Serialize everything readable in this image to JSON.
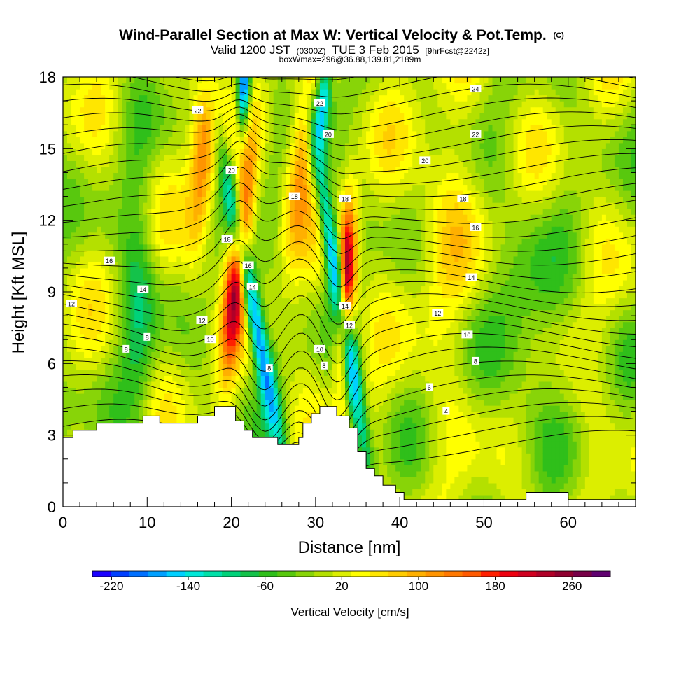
{
  "chart_data": {
    "type": "heatmap",
    "title": "Wind-Parallel Section at Max W: Vertical Velocity & Pot.Temp.",
    "title_suffix": "(C)",
    "subtitle_parts": [
      "Valid 1200 JST",
      "(0300Z)",
      "TUE 3 Feb 2015",
      "[9hrFcst@2242z]"
    ],
    "subtitle2": "boxWmax=296@36.88,139.81,2189m",
    "xlabel": "Distance [nm]",
    "ylabel": "Height [Kft MSL]",
    "xlim": [
      0,
      68
    ],
    "ylim": [
      0,
      18
    ],
    "x_ticks": [
      "0",
      "10",
      "20",
      "30",
      "40",
      "50",
      "60"
    ],
    "y_ticks": [
      "0",
      "3",
      "6",
      "9",
      "12",
      "15",
      "18"
    ],
    "colorbar": {
      "label": "Vertical Velocity [cm/s]",
      "tick_labels": [
        "-220",
        "-140",
        "-60",
        "20",
        "100",
        "180",
        "260"
      ],
      "range": [
        -240,
        300
      ],
      "colors": [
        "#1a00ff",
        "#0040ff",
        "#0070ff",
        "#00a0ff",
        "#00d0ff",
        "#00e8d8",
        "#00e0a8",
        "#00d27a",
        "#14c24a",
        "#2fbf1a",
        "#58c80e",
        "#88d408",
        "#b4e000",
        "#dcee00",
        "#ffff00",
        "#ffe600",
        "#ffcc00",
        "#ffb000",
        "#ff9400",
        "#ff7800",
        "#ff5a00",
        "#ff2000",
        "#ee0010",
        "#d00020",
        "#b00028",
        "#900030",
        "#780048",
        "#600070"
      ]
    },
    "contour_labels": [
      {
        "x": 1,
        "y": 8.5,
        "v": "12"
      },
      {
        "x": 7.5,
        "y": 6.6,
        "v": "8"
      },
      {
        "x": 10,
        "y": 7.1,
        "v": "8"
      },
      {
        "x": 9.5,
        "y": 9.1,
        "v": "14"
      },
      {
        "x": 5.5,
        "y": 10.3,
        "v": "16"
      },
      {
        "x": 17.5,
        "y": 7.0,
        "v": "10"
      },
      {
        "x": 16.5,
        "y": 7.8,
        "v": "12"
      },
      {
        "x": 19.5,
        "y": 11.2,
        "v": "18"
      },
      {
        "x": 20,
        "y": 14.1,
        "v": "20"
      },
      {
        "x": 16,
        "y": 16.6,
        "v": "22"
      },
      {
        "x": 22,
        "y": 10.1,
        "v": "16"
      },
      {
        "x": 22.5,
        "y": 9.2,
        "v": "14"
      },
      {
        "x": 24.5,
        "y": 5.8,
        "v": "8"
      },
      {
        "x": 27.5,
        "y": 13.0,
        "v": "18"
      },
      {
        "x": 30.5,
        "y": 16.9,
        "v": "22"
      },
      {
        "x": 31.5,
        "y": 15.6,
        "v": "20"
      },
      {
        "x": 30.5,
        "y": 6.6,
        "v": "10"
      },
      {
        "x": 31,
        "y": 5.9,
        "v": "8"
      },
      {
        "x": 33.5,
        "y": 12.9,
        "v": "18"
      },
      {
        "x": 33.5,
        "y": 8.4,
        "v": "14"
      },
      {
        "x": 34,
        "y": 7.6,
        "v": "12"
      },
      {
        "x": 43.5,
        "y": 5.0,
        "v": "6"
      },
      {
        "x": 45.5,
        "y": 4.0,
        "v": "4"
      },
      {
        "x": 44.5,
        "y": 8.1,
        "v": "12"
      },
      {
        "x": 48,
        "y": 7.2,
        "v": "10"
      },
      {
        "x": 49,
        "y": 6.1,
        "v": "8"
      },
      {
        "x": 48.5,
        "y": 9.6,
        "v": "14"
      },
      {
        "x": 49,
        "y": 11.7,
        "v": "16"
      },
      {
        "x": 47.5,
        "y": 12.9,
        "v": "18"
      },
      {
        "x": 43,
        "y": 14.5,
        "v": "20"
      },
      {
        "x": 49,
        "y": 15.6,
        "v": "22"
      },
      {
        "x": 49,
        "y": 17.5,
        "v": "24"
      }
    ]
  }
}
